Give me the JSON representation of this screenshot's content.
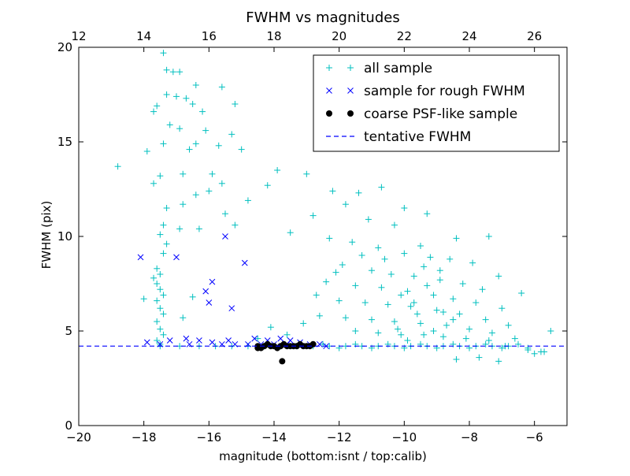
{
  "chart_data": {
    "type": "scatter",
    "title": "FWHM vs magnitudes",
    "xlabel": "magnitude (bottom:isnt / top:calib)",
    "ylabel": "FWHM (pix)",
    "xlim": [
      -20,
      -5
    ],
    "ylim": [
      0,
      20
    ],
    "top_xlim": [
      12,
      27
    ],
    "x_ticks": [
      -20,
      -18,
      -16,
      -14,
      -12,
      -10,
      -8,
      -6
    ],
    "x_tick_labels": [
      "−20",
      "−18",
      "−16",
      "−14",
      "−12",
      "−10",
      "−8",
      "−6"
    ],
    "top_x_ticks": [
      12,
      14,
      16,
      18,
      20,
      22,
      24,
      26
    ],
    "top_x_tick_labels": [
      "12",
      "14",
      "16",
      "18",
      "20",
      "22",
      "24",
      "26"
    ],
    "y_ticks": [
      0,
      5,
      10,
      15,
      20
    ],
    "y_tick_labels": [
      "0",
      "5",
      "10",
      "15",
      "20"
    ],
    "legend_position": "top-right",
    "series": [
      {
        "name": "all sample",
        "marker": "+",
        "color": "#00bfbf",
        "points": [
          [
            -17.4,
            19.7
          ],
          [
            -17.3,
            18.8
          ],
          [
            -17.1,
            18.7
          ],
          [
            -16.9,
            18.7
          ],
          [
            -16.4,
            18.0
          ],
          [
            -15.6,
            17.9
          ],
          [
            -17.3,
            17.5
          ],
          [
            -17.0,
            17.4
          ],
          [
            -16.7,
            17.3
          ],
          [
            -16.5,
            17.0
          ],
          [
            -17.6,
            16.9
          ],
          [
            -15.2,
            17.0
          ],
          [
            -16.2,
            16.6
          ],
          [
            -17.7,
            16.6
          ],
          [
            -17.2,
            15.9
          ],
          [
            -16.9,
            15.7
          ],
          [
            -16.1,
            15.6
          ],
          [
            -15.3,
            15.4
          ],
          [
            -17.4,
            14.9
          ],
          [
            -16.4,
            14.9
          ],
          [
            -16.6,
            14.6
          ],
          [
            -17.9,
            14.5
          ],
          [
            -15.7,
            14.8
          ],
          [
            -15.0,
            14.6
          ],
          [
            -17.5,
            13.2
          ],
          [
            -18.8,
            13.7
          ],
          [
            -17.7,
            12.8
          ],
          [
            -16.8,
            13.3
          ],
          [
            -15.9,
            13.3
          ],
          [
            -15.6,
            12.8
          ],
          [
            -14.2,
            12.7
          ],
          [
            -16.0,
            12.4
          ],
          [
            -16.4,
            12.2
          ],
          [
            -16.8,
            11.7
          ],
          [
            -17.3,
            11.5
          ],
          [
            -15.5,
            11.2
          ],
          [
            -14.8,
            11.9
          ],
          [
            -15.2,
            10.6
          ],
          [
            -16.3,
            10.4
          ],
          [
            -16.9,
            10.4
          ],
          [
            -13.9,
            13.5
          ],
          [
            -13.0,
            13.3
          ],
          [
            -12.2,
            12.4
          ],
          [
            -11.4,
            12.3
          ],
          [
            -10.7,
            12.6
          ],
          [
            -11.8,
            11.7
          ],
          [
            -10.0,
            11.5
          ],
          [
            -9.3,
            11.2
          ],
          [
            -12.8,
            11.1
          ],
          [
            -11.1,
            10.9
          ],
          [
            -10.3,
            10.6
          ],
          [
            -13.5,
            10.2
          ],
          [
            -12.3,
            9.9
          ],
          [
            -11.6,
            9.7
          ],
          [
            -10.8,
            9.4
          ],
          [
            -9.5,
            9.5
          ],
          [
            -8.4,
            9.9
          ],
          [
            -7.4,
            10.0
          ],
          [
            -10.0,
            9.1
          ],
          [
            -9.2,
            8.9
          ],
          [
            -8.6,
            8.8
          ],
          [
            -7.9,
            8.6
          ],
          [
            -7.1,
            7.9
          ],
          [
            -6.4,
            7.0
          ],
          [
            -5.5,
            5.0
          ],
          [
            -11.9,
            8.5
          ],
          [
            -11.0,
            8.2
          ],
          [
            -10.4,
            8.0
          ],
          [
            -9.7,
            7.9
          ],
          [
            -8.9,
            7.7
          ],
          [
            -8.2,
            7.5
          ],
          [
            -7.6,
            7.2
          ],
          [
            -12.4,
            7.6
          ],
          [
            -11.5,
            7.4
          ],
          [
            -10.7,
            7.3
          ],
          [
            -9.9,
            7.1
          ],
          [
            -9.1,
            6.9
          ],
          [
            -8.5,
            6.7
          ],
          [
            -7.8,
            6.5
          ],
          [
            -7.0,
            6.2
          ],
          [
            -12.0,
            6.6
          ],
          [
            -11.2,
            6.5
          ],
          [
            -10.5,
            6.4
          ],
          [
            -9.8,
            6.3
          ],
          [
            -9.0,
            6.1
          ],
          [
            -8.3,
            5.9
          ],
          [
            -7.5,
            5.6
          ],
          [
            -6.8,
            5.3
          ],
          [
            -12.6,
            5.8
          ],
          [
            -11.8,
            5.7
          ],
          [
            -11.0,
            5.6
          ],
          [
            -10.3,
            5.5
          ],
          [
            -9.5,
            5.4
          ],
          [
            -8.7,
            5.3
          ],
          [
            -8.0,
            5.1
          ],
          [
            -7.3,
            4.9
          ],
          [
            -6.6,
            4.6
          ],
          [
            -11.5,
            5.0
          ],
          [
            -10.8,
            4.9
          ],
          [
            -10.1,
            4.8
          ],
          [
            -9.4,
            4.8
          ],
          [
            -8.8,
            4.7
          ],
          [
            -8.1,
            4.6
          ],
          [
            -7.4,
            4.5
          ],
          [
            -6.9,
            4.2
          ],
          [
            -6.2,
            4.0
          ],
          [
            -5.8,
            3.9
          ],
          [
            -7.7,
            3.6
          ],
          [
            -7.1,
            3.4
          ],
          [
            -8.4,
            3.5
          ],
          [
            -10.1,
            6.9
          ],
          [
            -9.7,
            6.5
          ],
          [
            -9.3,
            7.4
          ],
          [
            -8.8,
            6.0
          ],
          [
            -9.6,
            5.9
          ],
          [
            -10.2,
            5.1
          ],
          [
            -9.9,
            4.5
          ],
          [
            -9.1,
            5.0
          ],
          [
            -8.5,
            5.6
          ],
          [
            -8.9,
            8.2
          ],
          [
            -9.4,
            8.4
          ],
          [
            -10.6,
            8.8
          ],
          [
            -11.3,
            9.0
          ],
          [
            -12.1,
            8.1
          ],
          [
            -12.7,
            6.9
          ],
          [
            -13.1,
            5.4
          ],
          [
            -14.5,
            4.6
          ],
          [
            -14.1,
            5.2
          ],
          [
            -13.6,
            4.8
          ],
          [
            -17.4,
            10.6
          ],
          [
            -17.5,
            10.1
          ],
          [
            -17.3,
            9.6
          ],
          [
            -17.4,
            9.1
          ],
          [
            -17.6,
            8.3
          ],
          [
            -17.5,
            8.0
          ],
          [
            -17.7,
            7.8
          ],
          [
            -17.6,
            7.5
          ],
          [
            -17.5,
            7.2
          ],
          [
            -17.4,
            6.9
          ],
          [
            -17.6,
            6.6
          ],
          [
            -17.5,
            6.2
          ],
          [
            -17.4,
            5.9
          ],
          [
            -17.6,
            5.5
          ],
          [
            -17.5,
            5.1
          ],
          [
            -17.4,
            4.8
          ],
          [
            -17.6,
            4.5
          ],
          [
            -17.5,
            4.3
          ],
          [
            -18.0,
            6.7
          ],
          [
            -16.5,
            6.8
          ],
          [
            -16.8,
            5.7
          ],
          [
            -17.5,
            4.2
          ],
          [
            -16.9,
            4.2
          ],
          [
            -16.3,
            4.2
          ],
          [
            -15.8,
            4.2
          ],
          [
            -15.3,
            4.2
          ],
          [
            -14.8,
            4.2
          ],
          [
            -14.3,
            4.2
          ],
          [
            -13.8,
            4.2
          ],
          [
            -13.3,
            4.2
          ],
          [
            -12.8,
            4.2
          ],
          [
            -12.3,
            4.2
          ],
          [
            -11.8,
            4.2
          ],
          [
            -11.3,
            4.2
          ],
          [
            -10.8,
            4.2
          ],
          [
            -10.3,
            4.2
          ],
          [
            -9.8,
            4.2
          ],
          [
            -9.3,
            4.2
          ],
          [
            -8.8,
            4.2
          ],
          [
            -8.3,
            4.2
          ],
          [
            -7.8,
            4.2
          ],
          [
            -7.3,
            4.2
          ],
          [
            -6.8,
            4.2
          ],
          [
            -6.2,
            4.1
          ],
          [
            -12.5,
            4.3
          ],
          [
            -11.5,
            4.3
          ],
          [
            -10.5,
            4.3
          ],
          [
            -9.5,
            4.3
          ],
          [
            -8.5,
            4.3
          ],
          [
            -7.5,
            4.3
          ],
          [
            -6.5,
            4.3
          ],
          [
            -12.0,
            4.1
          ],
          [
            -11.0,
            4.1
          ],
          [
            -10.0,
            4.1
          ],
          [
            -9.0,
            4.1
          ],
          [
            -8.0,
            4.1
          ],
          [
            -7.0,
            4.1
          ],
          [
            -6.0,
            3.8
          ],
          [
            -5.7,
            3.9
          ]
        ]
      },
      {
        "name": "sample for rough FWHM",
        "marker": "x",
        "color": "#0000ff",
        "points": [
          [
            -18.1,
            8.9
          ],
          [
            -17.0,
            8.9
          ],
          [
            -15.5,
            10.0
          ],
          [
            -14.9,
            8.6
          ],
          [
            -15.9,
            7.6
          ],
          [
            -16.1,
            7.1
          ],
          [
            -16.0,
            6.5
          ],
          [
            -15.3,
            6.2
          ],
          [
            -14.6,
            4.6
          ],
          [
            -14.2,
            4.5
          ],
          [
            -13.8,
            4.6
          ],
          [
            -13.5,
            4.5
          ],
          [
            -13.2,
            4.4
          ],
          [
            -12.9,
            4.3
          ],
          [
            -12.6,
            4.3
          ],
          [
            -17.5,
            4.3
          ],
          [
            -17.9,
            4.4
          ],
          [
            -16.6,
            4.3
          ],
          [
            -17.2,
            4.5
          ],
          [
            -16.3,
            4.5
          ],
          [
            -15.9,
            4.4
          ],
          [
            -15.6,
            4.3
          ],
          [
            -15.2,
            4.3
          ],
          [
            -14.8,
            4.3
          ],
          [
            -14.4,
            4.3
          ],
          [
            -14.0,
            4.3
          ],
          [
            -13.6,
            4.3
          ],
          [
            -13.0,
            4.2
          ],
          [
            -12.4,
            4.2
          ],
          [
            -16.7,
            4.6
          ],
          [
            -15.4,
            4.5
          ]
        ]
      },
      {
        "name": "coarse PSF-like sample",
        "marker": "o",
        "color": "#000000",
        "points": [
          [
            -14.5,
            4.2
          ],
          [
            -14.4,
            4.1
          ],
          [
            -14.3,
            4.2
          ],
          [
            -14.2,
            4.3
          ],
          [
            -14.1,
            4.2
          ],
          [
            -14.0,
            4.2
          ],
          [
            -13.9,
            4.1
          ],
          [
            -13.8,
            4.2
          ],
          [
            -13.7,
            4.3
          ],
          [
            -13.6,
            4.2
          ],
          [
            -13.5,
            4.2
          ],
          [
            -13.4,
            4.2
          ],
          [
            -13.3,
            4.2
          ],
          [
            -13.2,
            4.3
          ],
          [
            -13.1,
            4.2
          ],
          [
            -13.0,
            4.2
          ],
          [
            -12.9,
            4.2
          ],
          [
            -12.8,
            4.3
          ],
          [
            -14.5,
            4.1
          ],
          [
            -13.75,
            3.4
          ]
        ]
      },
      {
        "name": "tentative FWHM",
        "marker": "dashed-line",
        "color": "#0000ff",
        "y": 4.2
      }
    ]
  }
}
